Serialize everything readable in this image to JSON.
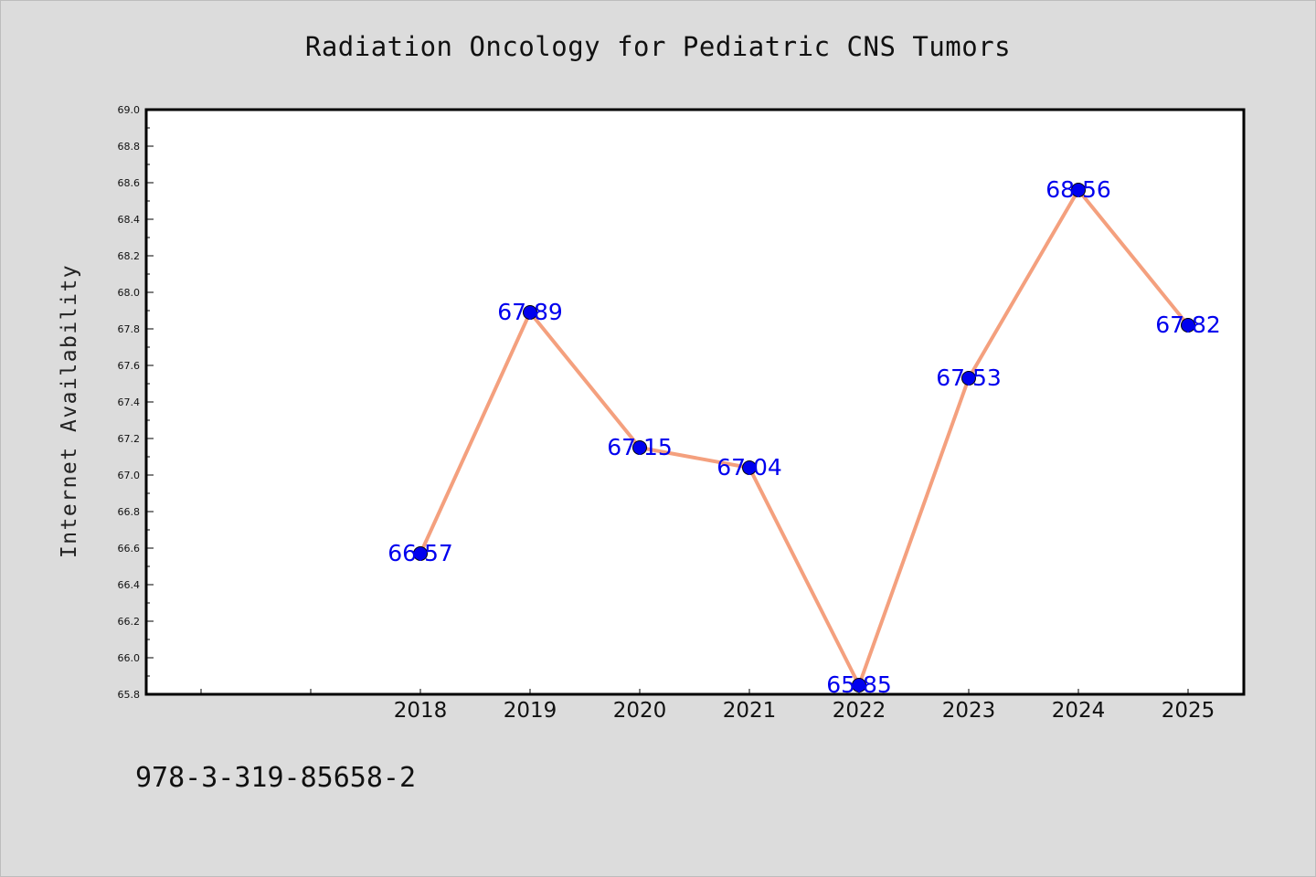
{
  "page": {
    "footnote": "978-3-319-85658-2"
  },
  "chart_data": {
    "type": "line",
    "title": "Radiation Oncology for Pediatric CNS Tumors",
    "xlabel": "",
    "ylabel": "Internet Availability",
    "categories": [
      "2018",
      "2019",
      "2020",
      "2021",
      "2022",
      "2023",
      "2024",
      "2025"
    ],
    "series": [
      {
        "values": [
          66.57,
          67.89,
          67.15,
          67.04,
          65.85,
          67.53,
          68.56,
          67.82
        ],
        "data_labels": [
          "66.57",
          "67.89",
          "67.15",
          "67.04",
          "65.85",
          "67.53",
          "68.56",
          "67.82"
        ]
      }
    ],
    "ylim": [
      65.8,
      69.0
    ],
    "yticks": [
      "65.8",
      "66.0",
      "66.2",
      "66.4",
      "66.6",
      "66.8",
      "67.0",
      "67.2",
      "67.4",
      "67.6",
      "67.8",
      "68.0",
      "68.2",
      "68.4",
      "68.6",
      "68.8",
      "69.0"
    ],
    "grid": false,
    "legend": "none",
    "colors": {
      "line": "#f4a07e",
      "marker": "#0000ee",
      "label": "#0000ee",
      "background": "#dcdcdc",
      "plot_background": "#ffffff"
    }
  }
}
